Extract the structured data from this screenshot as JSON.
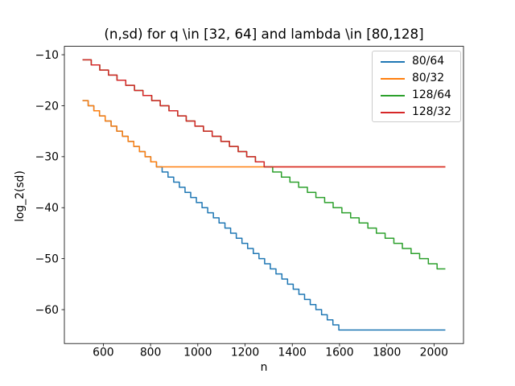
{
  "chart_data": {
    "type": "line",
    "draw_style": "steps-post",
    "title": "(n,sd) for q \\in [32, 64] and lambda \\in [80,128]",
    "xlabel": "n",
    "ylabel": "log_2(sd)",
    "xlim": [
      435.2,
      2124.8
    ],
    "ylim": [
      -66.65,
      -8.35
    ],
    "x_ticks": [
      600,
      800,
      1000,
      1200,
      1400,
      1600,
      1800,
      2000
    ],
    "y_ticks": [
      -60,
      -50,
      -40,
      -30,
      -20,
      -10
    ],
    "grid": false,
    "legend_position": "upper right",
    "x_start": 512,
    "x_end": 2048,
    "series": [
      {
        "name": "80/64",
        "color": "#1f77b4",
        "floor_value": -64,
        "points": [
          [
            512,
            -19
          ],
          [
            536,
            -20
          ],
          [
            560,
            -21
          ],
          [
            584,
            -22
          ],
          [
            608,
            -23
          ],
          [
            633,
            -24
          ],
          [
            657,
            -25
          ],
          [
            681,
            -26
          ],
          [
            705,
            -27
          ],
          [
            729,
            -28
          ],
          [
            753,
            -29
          ],
          [
            777,
            -30
          ],
          [
            801,
            -31
          ],
          [
            825,
            -32
          ],
          [
            849,
            -33
          ],
          [
            874,
            -34
          ],
          [
            898,
            -35
          ],
          [
            922,
            -36
          ],
          [
            946,
            -37
          ],
          [
            970,
            -38
          ],
          [
            994,
            -39
          ],
          [
            1018,
            -40
          ],
          [
            1042,
            -41
          ],
          [
            1066,
            -42
          ],
          [
            1090,
            -43
          ],
          [
            1115,
            -44
          ],
          [
            1139,
            -45
          ],
          [
            1163,
            -46
          ],
          [
            1187,
            -47
          ],
          [
            1211,
            -48
          ],
          [
            1235,
            -49
          ],
          [
            1259,
            -50
          ],
          [
            1283,
            -51
          ],
          [
            1307,
            -52
          ],
          [
            1331,
            -53
          ],
          [
            1356,
            -54
          ],
          [
            1380,
            -55
          ],
          [
            1404,
            -56
          ],
          [
            1428,
            -57
          ],
          [
            1452,
            -58
          ],
          [
            1476,
            -59
          ],
          [
            1500,
            -60
          ],
          [
            1524,
            -61
          ],
          [
            1548,
            -62
          ],
          [
            1572,
            -63
          ],
          [
            1597,
            -64
          ]
        ]
      },
      {
        "name": "80/32",
        "color": "#ff7f0e",
        "floor_value": -32,
        "points": [
          [
            512,
            -19
          ],
          [
            536,
            -20
          ],
          [
            560,
            -21
          ],
          [
            584,
            -22
          ],
          [
            608,
            -23
          ],
          [
            633,
            -24
          ],
          [
            657,
            -25
          ],
          [
            681,
            -26
          ],
          [
            705,
            -27
          ],
          [
            729,
            -28
          ],
          [
            753,
            -29
          ],
          [
            777,
            -30
          ],
          [
            801,
            -31
          ],
          [
            825,
            -32
          ]
        ]
      },
      {
        "name": "128/64",
        "color": "#2ca02c",
        "floor_value": -64,
        "points": [
          [
            512,
            -11
          ],
          [
            549,
            -12
          ],
          [
            585,
            -13
          ],
          [
            622,
            -14
          ],
          [
            658,
            -15
          ],
          [
            695,
            -16
          ],
          [
            732,
            -17
          ],
          [
            768,
            -18
          ],
          [
            805,
            -19
          ],
          [
            841,
            -20
          ],
          [
            878,
            -21
          ],
          [
            915,
            -22
          ],
          [
            951,
            -23
          ],
          [
            988,
            -24
          ],
          [
            1024,
            -25
          ],
          [
            1061,
            -26
          ],
          [
            1098,
            -27
          ],
          [
            1134,
            -28
          ],
          [
            1171,
            -29
          ],
          [
            1207,
            -30
          ],
          [
            1244,
            -31
          ],
          [
            1281,
            -32
          ],
          [
            1317,
            -33
          ],
          [
            1354,
            -34
          ],
          [
            1390,
            -35
          ],
          [
            1427,
            -36
          ],
          [
            1464,
            -37
          ],
          [
            1500,
            -38
          ],
          [
            1537,
            -39
          ],
          [
            1573,
            -40
          ],
          [
            1610,
            -41
          ],
          [
            1647,
            -42
          ],
          [
            1683,
            -43
          ],
          [
            1720,
            -44
          ],
          [
            1756,
            -45
          ],
          [
            1793,
            -46
          ],
          [
            1830,
            -47
          ],
          [
            1866,
            -48
          ],
          [
            1903,
            -49
          ],
          [
            1939,
            -50
          ],
          [
            1976,
            -51
          ],
          [
            2013,
            -52
          ]
        ]
      },
      {
        "name": "128/32",
        "color": "#d62728",
        "floor_value": -32,
        "points": [
          [
            512,
            -11
          ],
          [
            549,
            -12
          ],
          [
            585,
            -13
          ],
          [
            622,
            -14
          ],
          [
            658,
            -15
          ],
          [
            695,
            -16
          ],
          [
            732,
            -17
          ],
          [
            768,
            -18
          ],
          [
            805,
            -19
          ],
          [
            841,
            -20
          ],
          [
            878,
            -21
          ],
          [
            915,
            -22
          ],
          [
            951,
            -23
          ],
          [
            988,
            -24
          ],
          [
            1024,
            -25
          ],
          [
            1061,
            -26
          ],
          [
            1098,
            -27
          ],
          [
            1134,
            -28
          ],
          [
            1171,
            -29
          ],
          [
            1207,
            -30
          ],
          [
            1244,
            -31
          ],
          [
            1281,
            -32
          ]
        ]
      }
    ]
  }
}
